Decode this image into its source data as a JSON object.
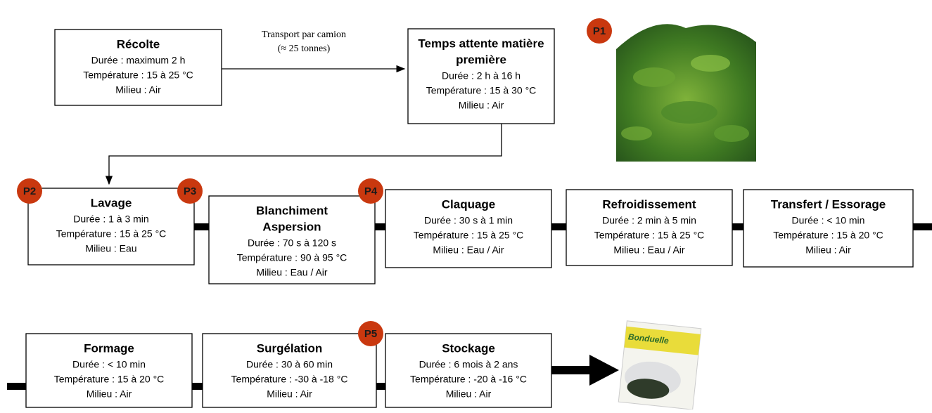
{
  "transport": [
    "Transport par camion",
    "(≈ 25 tonnes)"
  ],
  "nodes": [
    {
      "title": [
        "Récolte"
      ],
      "details": [
        "Durée : maximum 2 h",
        "Température : 15 à 25 °C",
        "Milieu : Air"
      ]
    },
    {
      "title": [
        "Temps attente matière",
        "première"
      ],
      "details": [
        "Durée : 2 h à 16 h",
        "Température : 15 à 30 °C",
        "Milieu : Air"
      ]
    },
    {
      "title": [
        "Lavage"
      ],
      "details": [
        "Durée : 1 à 3 min",
        "Température : 15 à 25 °C",
        "Milieu : Eau"
      ]
    },
    {
      "title": [
        "Blanchiment",
        "Aspersion"
      ],
      "details": [
        "Durée : 70 s à 120 s",
        "Température : 90 à 95 °C",
        "Milieu : Eau / Air"
      ]
    },
    {
      "title": [
        "Claquage"
      ],
      "details": [
        "Durée : 30 s à 1 min",
        "Température : 15 à 25 °C",
        "Milieu : Eau / Air"
      ]
    },
    {
      "title": [
        "Refroidissement"
      ],
      "details": [
        "Durée : 2 min à 5 min",
        "Température : 15 à 25 °C",
        "Milieu : Eau / Air"
      ]
    },
    {
      "title": [
        "Transfert / Essorage"
      ],
      "details": [
        "Durée : < 10 min",
        "Température : 15 à 20 °C",
        "Milieu : Air"
      ]
    },
    {
      "title": [
        "Formage"
      ],
      "details": [
        "Durée : < 10 min",
        "Température : 15 à 20 °C",
        "Milieu : Air"
      ]
    },
    {
      "title": [
        "Surgélation"
      ],
      "details": [
        "Durée : 30 à 60 min",
        "Température : -30 à -18 °C",
        "Milieu : Air"
      ]
    },
    {
      "title": [
        "Stockage"
      ],
      "details": [
        "Durée : 6 mois à 2 ans",
        "Température : -20 à -16 °C",
        "Milieu : Air"
      ]
    }
  ],
  "badges": [
    "P1",
    "P2",
    "P3",
    "P4",
    "P5"
  ],
  "package_brand": "Bonduelle"
}
